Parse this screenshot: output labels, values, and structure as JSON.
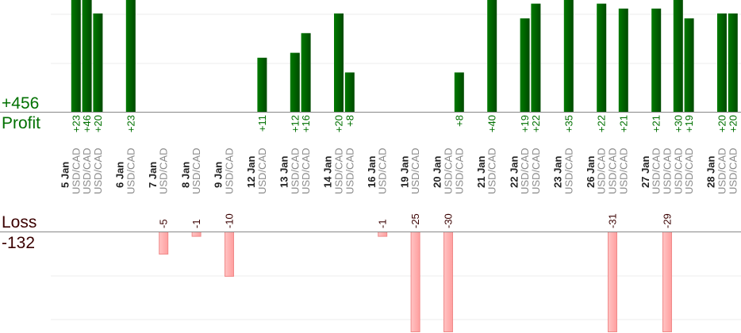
{
  "chart_data": {
    "type": "bar",
    "title": "",
    "profit_label": "Profit",
    "profit_total": "+456",
    "loss_label": "Loss",
    "loss_total": "-132",
    "colors": {
      "profit": "#006400",
      "profit_text": "#007000",
      "loss": "#ffb3b3",
      "loss_border": "#f08a8a",
      "loss_text": "#3a0000",
      "date_text": "#222222",
      "pair_text": "#8a8a8a"
    },
    "groups": [
      {
        "date": "5 Jan",
        "trades": [
          {
            "pair": "USD/CAD",
            "value": 23
          },
          {
            "pair": "USD/CAD",
            "value": 46
          },
          {
            "pair": "USD/CAD",
            "value": 20
          }
        ]
      },
      {
        "date": "6 Jan",
        "trades": [
          {
            "pair": "USD/CAD",
            "value": 23
          }
        ]
      },
      {
        "date": "7 Jan",
        "trades": [
          {
            "pair": "USD/CAD",
            "value": -5
          }
        ]
      },
      {
        "date": "8 Jan",
        "trades": [
          {
            "pair": "USD/CAD",
            "value": -1
          }
        ]
      },
      {
        "date": "9 Jan",
        "trades": [
          {
            "pair": "USD/CAD",
            "value": -10
          }
        ]
      },
      {
        "date": "12 Jan",
        "trades": [
          {
            "pair": "USD/CAD",
            "value": 11
          }
        ]
      },
      {
        "date": "13 Jan",
        "trades": [
          {
            "pair": "USD/CAD",
            "value": 12
          },
          {
            "pair": "USD/CAD",
            "value": 16
          }
        ]
      },
      {
        "date": "14 Jan",
        "trades": [
          {
            "pair": "USD/CAD",
            "value": 20
          },
          {
            "pair": "USD/CAD",
            "value": 8
          }
        ]
      },
      {
        "date": "16 Jan",
        "trades": [
          {
            "pair": "USD/CAD",
            "value": -1
          }
        ]
      },
      {
        "date": "19 Jan",
        "trades": [
          {
            "pair": "USD/CAD",
            "value": -25
          }
        ]
      },
      {
        "date": "20 Jan",
        "trades": [
          {
            "pair": "USD/CAD",
            "value": -30
          },
          {
            "pair": "USD/CAD",
            "value": 8
          }
        ]
      },
      {
        "date": "21 Jan",
        "trades": [
          {
            "pair": "USD/CAD",
            "value": 40
          }
        ]
      },
      {
        "date": "22 Jan",
        "trades": [
          {
            "pair": "USD/CAD",
            "value": 19
          },
          {
            "pair": "USD/CAD",
            "value": 22
          }
        ]
      },
      {
        "date": "23 Jan",
        "trades": [
          {
            "pair": "USD/CAD",
            "value": 35
          }
        ]
      },
      {
        "date": "26 Jan",
        "trades": [
          {
            "pair": "USD/CAD",
            "value": 22
          },
          {
            "pair": "USD/CAD",
            "value": -31
          },
          {
            "pair": "USD/CAD",
            "value": 21
          }
        ]
      },
      {
        "date": "27 Jan",
        "trades": [
          {
            "pair": "USD/CAD",
            "value": 21
          },
          {
            "pair": "USD/CAD",
            "value": -29
          },
          {
            "pair": "USD/CAD",
            "value": 30
          },
          {
            "pair": "USD/CAD",
            "value": 19
          }
        ]
      },
      {
        "date": "28 Jan",
        "trades": [
          {
            "pair": "USD/CAD",
            "value": 20
          },
          {
            "pair": "USD/CAD",
            "value": 20
          }
        ]
      }
    ]
  }
}
